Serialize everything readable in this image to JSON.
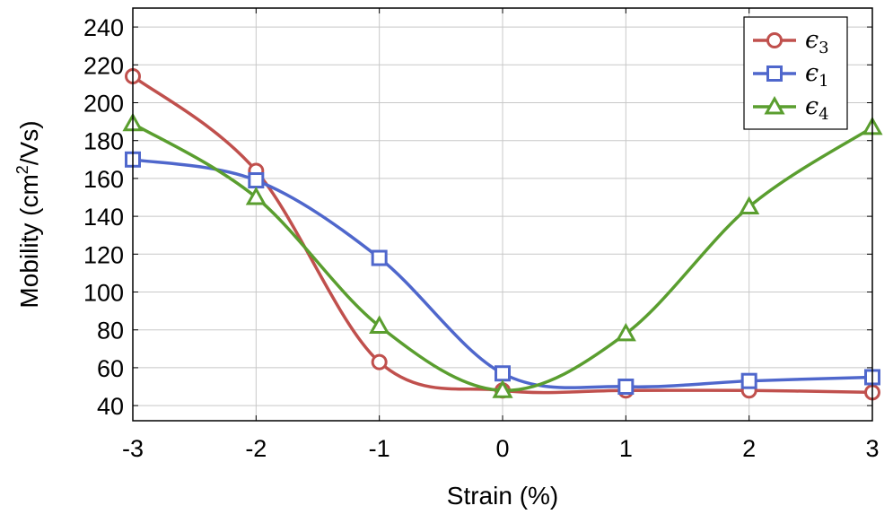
{
  "chart_data": {
    "type": "line",
    "title": "",
    "xlabel": "Strain (%)",
    "ylabel_main": "Mobility (cm",
    "ylabel_sup": "2",
    "ylabel_tail": "/Vs)",
    "x": [
      -3,
      -2,
      -1,
      0,
      1,
      2,
      3
    ],
    "xticks": [
      "-3",
      "-2",
      "-1",
      "0",
      "1",
      "2",
      "3"
    ],
    "yticks": [
      "40",
      "60",
      "80",
      "100",
      "120",
      "140",
      "160",
      "180",
      "200",
      "220",
      "240"
    ],
    "xlim": [
      -3,
      3
    ],
    "ylim": [
      32,
      250
    ],
    "grid": true,
    "legend_position": "top-right",
    "series": [
      {
        "name": "ϵ",
        "sub": "3",
        "color": "#c0504d",
        "marker": "circle",
        "values": [
          214,
          164,
          63,
          48,
          48,
          48,
          47
        ]
      },
      {
        "name": "ϵ",
        "sub": "1",
        "color": "#4f67cc",
        "marker": "square",
        "values": [
          170,
          159,
          118,
          57,
          50,
          53,
          55
        ]
      },
      {
        "name": "ϵ",
        "sub": "4",
        "color": "#5a9e2f",
        "marker": "triangle",
        "values": [
          189,
          150,
          82,
          48,
          78,
          145,
          187
        ]
      }
    ]
  }
}
